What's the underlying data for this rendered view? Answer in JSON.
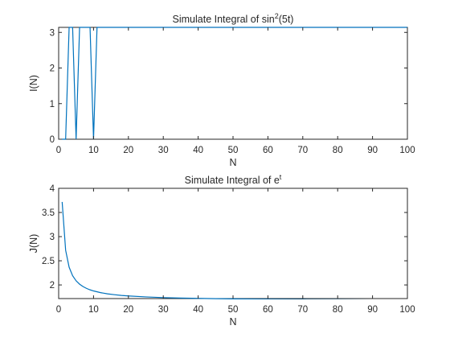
{
  "chart_data": [
    {
      "type": "line",
      "title": "Simulate Integral of sin²(5t)",
      "title_base": "Simulate Integral of sin",
      "title_sup": "2",
      "title_tail": "(5t)",
      "xlabel": "N",
      "ylabel": "I(N)",
      "xlim": [
        0,
        100
      ],
      "ylim": [
        0,
        3.1416
      ],
      "xticks": [
        "0",
        "10",
        "20",
        "30",
        "40",
        "50",
        "60",
        "70",
        "80",
        "90",
        "100"
      ],
      "yticks": [
        "0",
        "1",
        "2",
        "3"
      ],
      "ytick_values": [
        0,
        1,
        2,
        3
      ],
      "grid": false,
      "series": [
        {
          "color": "#0072bd",
          "x": [
            1,
            2,
            3,
            4,
            5,
            6,
            7,
            8,
            9,
            10,
            11,
            12,
            13,
            14,
            15,
            16,
            17,
            18,
            19,
            20,
            30,
            40,
            50,
            60,
            70,
            80,
            90,
            100
          ],
          "y": [
            0,
            0,
            3.1416,
            3.1416,
            0,
            3.1416,
            3.1416,
            3.1416,
            3.1416,
            0,
            3.1416,
            3.1416,
            3.1416,
            3.1416,
            3.1416,
            3.1416,
            3.1416,
            3.1416,
            3.1416,
            3.1416,
            3.1416,
            3.1416,
            3.1416,
            3.1416,
            3.1416,
            3.1416,
            3.1416,
            3.1416
          ]
        }
      ]
    },
    {
      "type": "line",
      "title": "Simulate Integral of eᵗ",
      "title_base": "Simulate Integral of e",
      "title_sup": "t",
      "title_tail": "",
      "xlabel": "N",
      "ylabel": "J(N)",
      "xlim": [
        0,
        100
      ],
      "ylim": [
        1.718,
        4
      ],
      "xticks": [
        "0",
        "10",
        "20",
        "30",
        "40",
        "50",
        "60",
        "70",
        "80",
        "90",
        "100"
      ],
      "yticks": [
        "2",
        "2.5",
        "3",
        "3.5",
        "4"
      ],
      "ytick_values": [
        2,
        2.5,
        3,
        3.5,
        4
      ],
      "grid": false,
      "series": [
        {
          "color": "#0072bd",
          "x": [
            1,
            2,
            3,
            4,
            5,
            6,
            7,
            8,
            9,
            10,
            12,
            14,
            16,
            18,
            20,
            25,
            30,
            35,
            40,
            45,
            50,
            60,
            70,
            80,
            90,
            100
          ],
          "y": [
            3.718,
            2.718,
            2.367,
            2.191,
            2.086,
            2.016,
            1.966,
            1.928,
            1.899,
            1.876,
            1.841,
            1.816,
            1.798,
            1.783,
            1.772,
            1.752,
            1.738,
            1.729,
            1.722,
            1.716,
            1.712,
            1.704,
            1.699,
            1.695,
            1.692,
            1.689
          ]
        }
      ]
    }
  ]
}
